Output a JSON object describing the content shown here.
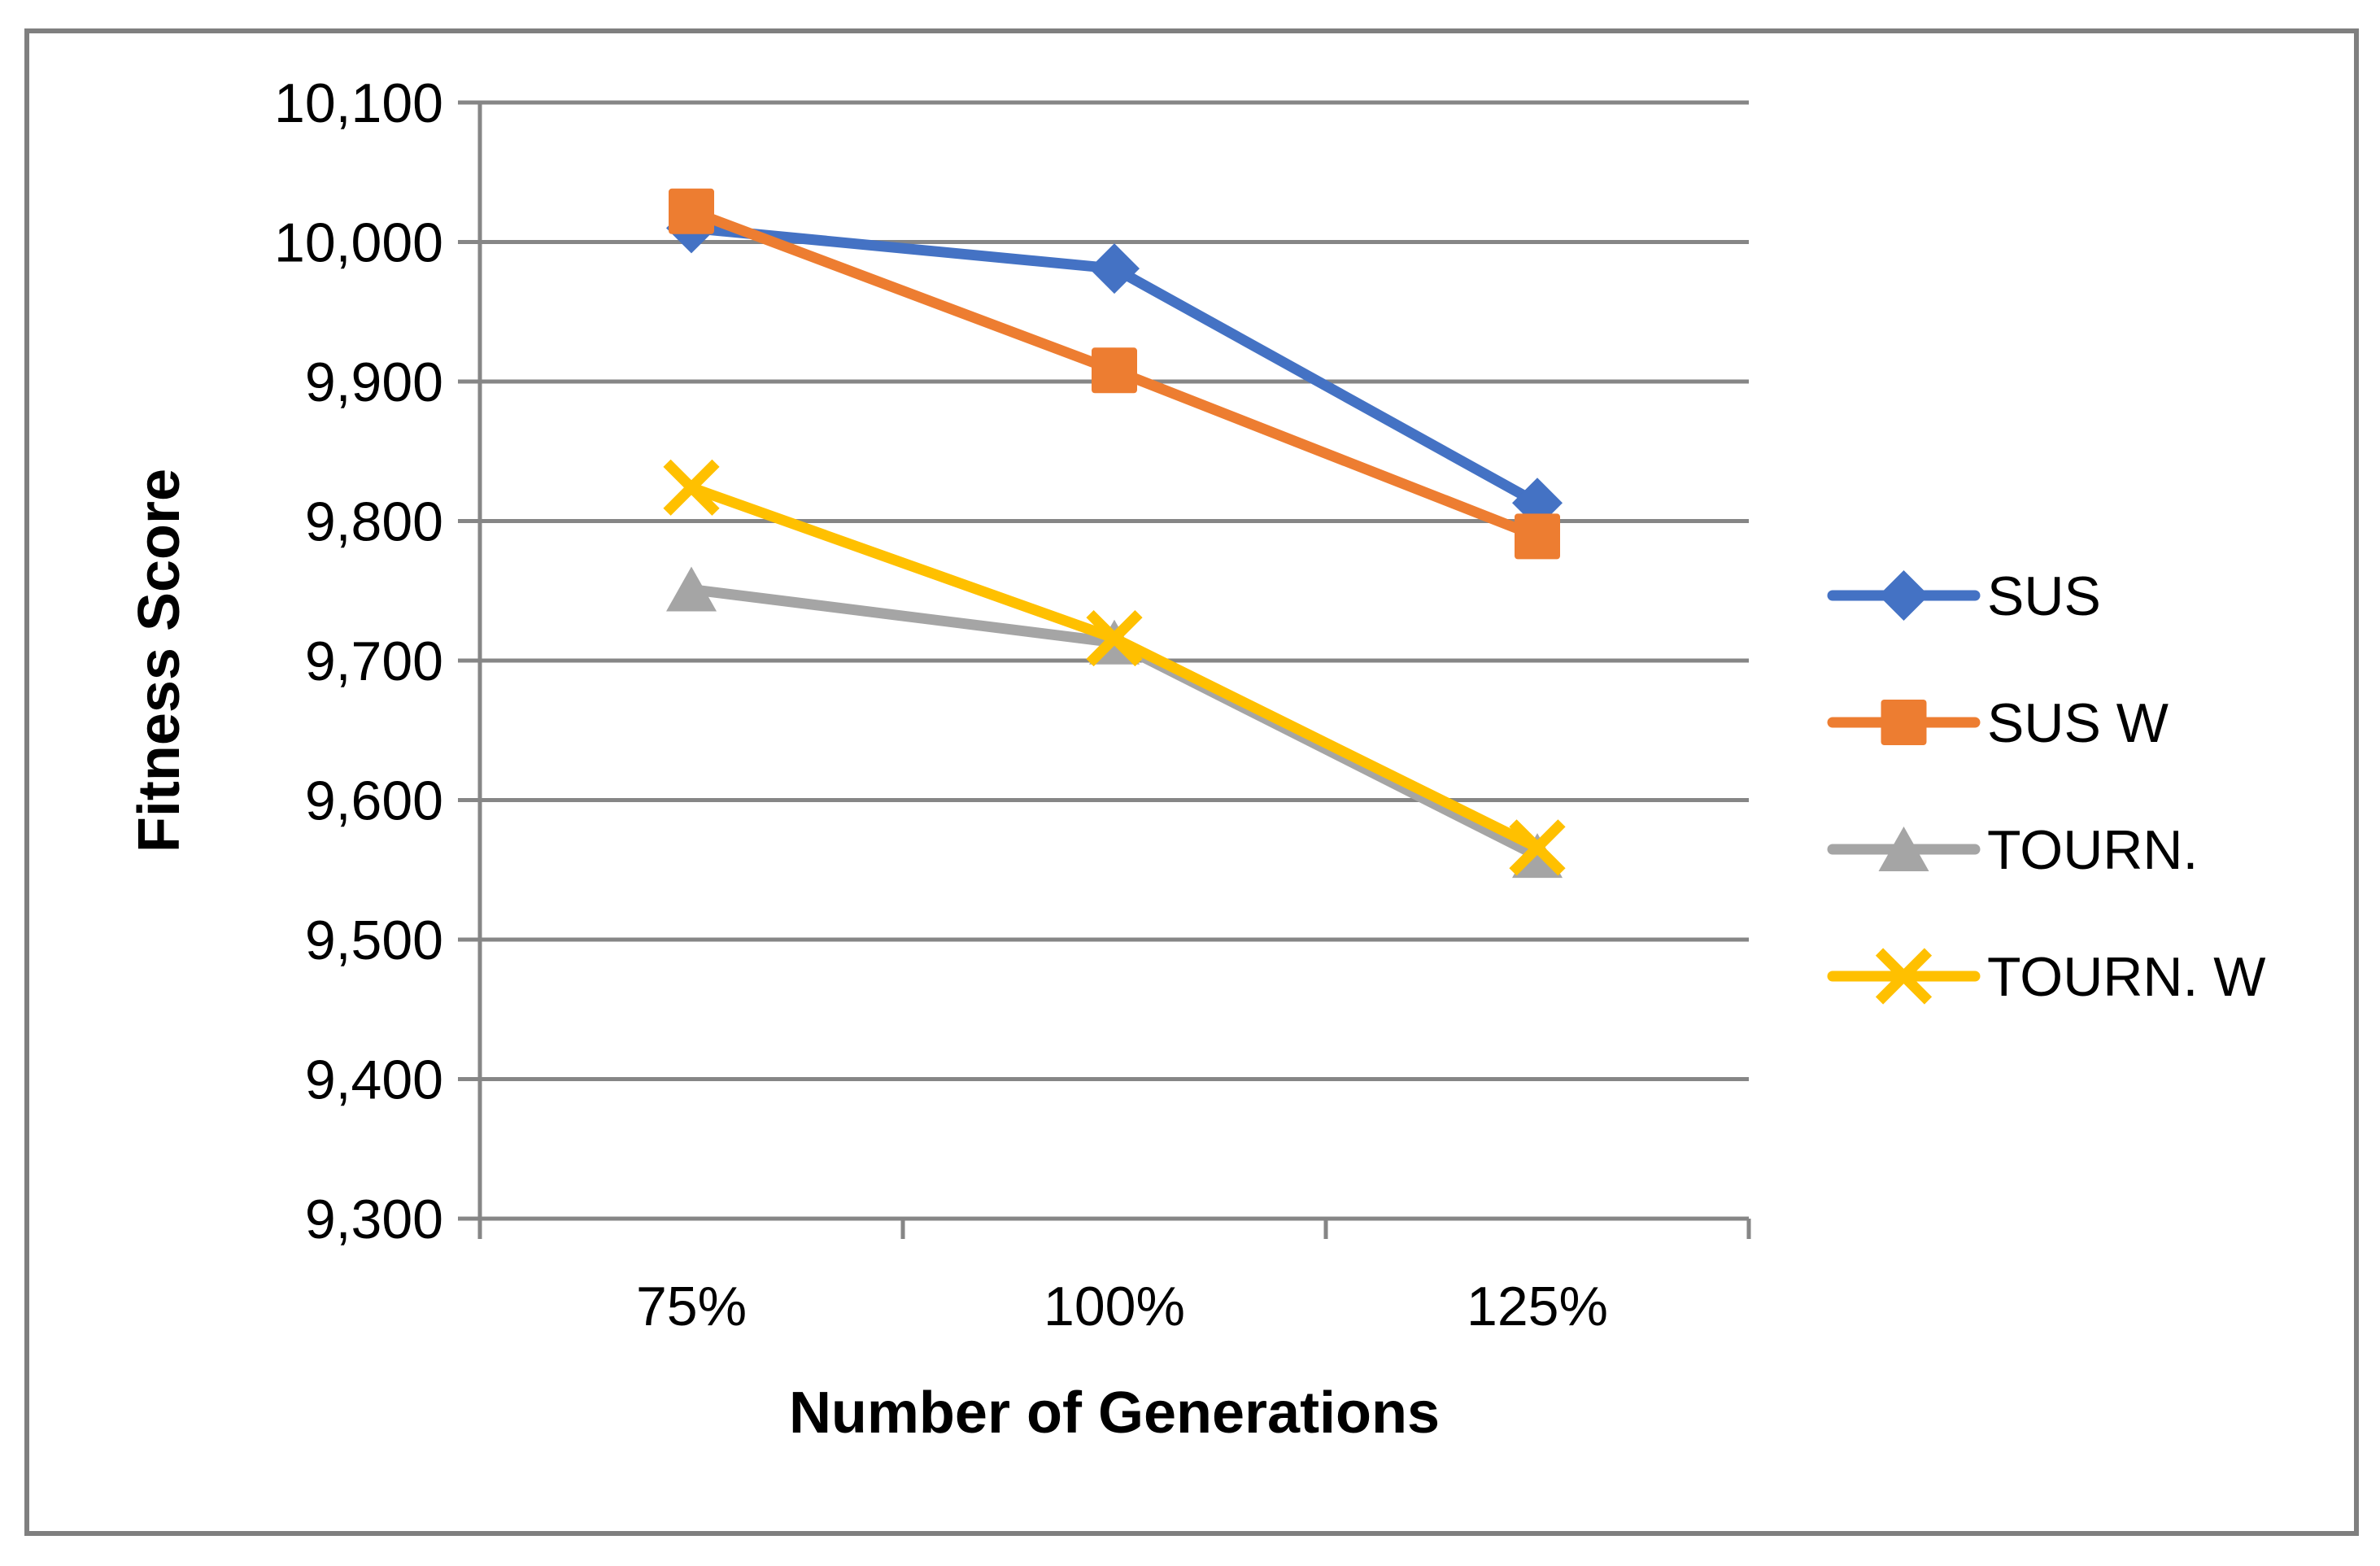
{
  "chart_data": {
    "type": "line",
    "title": "",
    "xlabel": "Number of Generations",
    "ylabel": "Fitness Score",
    "categories": [
      "75%",
      "100%",
      "125%"
    ],
    "series": [
      {
        "name": "SUS",
        "marker": "diamond",
        "color": "#4472C4",
        "values": [
          10010,
          9981,
          9813
        ]
      },
      {
        "name": "SUS W",
        "marker": "square",
        "color": "#ED7D31",
        "values": [
          10022,
          9908,
          9789
        ]
      },
      {
        "name": "TOURN.",
        "marker": "triangle",
        "color": "#A5A5A5",
        "values": [
          9751,
          9713,
          9560
        ]
      },
      {
        "name": "TOURN. W",
        "marker": "x",
        "color": "#FFC000",
        "values": [
          9824,
          9716,
          9566
        ]
      }
    ],
    "y_axis": {
      "min": 9300,
      "max": 10100,
      "step": 100,
      "tick_labels": [
        "10,100",
        "10,000",
        "9,900",
        "9,800",
        "9,700",
        "9,600",
        "9,500",
        "9,400",
        "9,300"
      ]
    },
    "legend": {
      "position": "right",
      "entries": [
        "SUS",
        "SUS W",
        "TOURN.",
        "TOURN. W"
      ]
    },
    "grid": true,
    "colors": {
      "gridline": "#868686",
      "axis": "#868686",
      "border": "#7F7F7F",
      "text": "#000000"
    }
  }
}
